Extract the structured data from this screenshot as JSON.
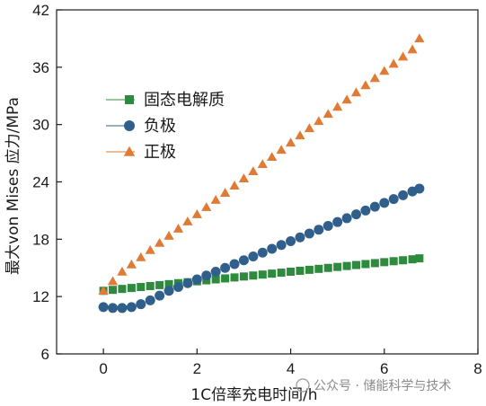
{
  "chart_data": {
    "type": "scatter",
    "xlabel": "1C倍率充电时间/h",
    "ylabel": "最大von Mises 应力/MPa",
    "xlim": [
      -1,
      8
    ],
    "ylim": [
      6,
      42
    ],
    "xticks": [
      0,
      2,
      4,
      6,
      8
    ],
    "yticks": [
      6,
      12,
      18,
      24,
      30,
      36,
      42
    ],
    "grid": false,
    "legend_position": "upper-left",
    "series": [
      {
        "name": "固态电解质",
        "marker": "square",
        "color": "#2e8b3e",
        "x": [
          0,
          0.2,
          0.4,
          0.6,
          0.8,
          1.0,
          1.2,
          1.4,
          1.6,
          1.8,
          2.0,
          2.2,
          2.4,
          2.6,
          2.8,
          3.0,
          3.2,
          3.4,
          3.6,
          3.8,
          4.0,
          4.2,
          4.4,
          4.6,
          4.8,
          5.0,
          5.2,
          5.4,
          5.6,
          5.8,
          6.0,
          6.2,
          6.4,
          6.6,
          6.75
        ],
        "y": [
          12.6,
          12.7,
          12.8,
          12.9,
          13.0,
          13.1,
          13.2,
          13.3,
          13.4,
          13.5,
          13.6,
          13.7,
          13.8,
          13.9,
          14.0,
          14.1,
          14.2,
          14.3,
          14.4,
          14.5,
          14.6,
          14.7,
          14.8,
          14.9,
          15.0,
          15.1,
          15.2,
          15.3,
          15.4,
          15.5,
          15.6,
          15.7,
          15.8,
          15.9,
          16.0
        ]
      },
      {
        "name": "负极",
        "marker": "circle",
        "color": "#2f5f8a",
        "x": [
          0,
          0.2,
          0.4,
          0.6,
          0.8,
          1.0,
          1.2,
          1.4,
          1.6,
          1.8,
          2.0,
          2.2,
          2.4,
          2.6,
          2.8,
          3.0,
          3.2,
          3.4,
          3.6,
          3.8,
          4.0,
          4.2,
          4.4,
          4.6,
          4.8,
          5.0,
          5.2,
          5.4,
          5.6,
          5.8,
          6.0,
          6.2,
          6.4,
          6.6,
          6.75
        ],
        "y": [
          10.9,
          10.8,
          10.8,
          10.9,
          11.2,
          11.6,
          12.1,
          12.6,
          13.0,
          13.4,
          13.8,
          14.2,
          14.6,
          15.0,
          15.4,
          15.8,
          16.2,
          16.6,
          17.0,
          17.4,
          17.8,
          18.2,
          18.6,
          19.0,
          19.4,
          19.8,
          20.2,
          20.6,
          21.0,
          21.4,
          21.8,
          22.2,
          22.6,
          23.0,
          23.3
        ]
      },
      {
        "name": "正极",
        "marker": "triangle",
        "color": "#e07b36",
        "x": [
          0,
          0.2,
          0.4,
          0.6,
          0.8,
          1.0,
          1.2,
          1.4,
          1.6,
          1.8,
          2.0,
          2.2,
          2.4,
          2.6,
          2.8,
          3.0,
          3.2,
          3.4,
          3.6,
          3.8,
          4.0,
          4.2,
          4.4,
          4.6,
          4.8,
          5.0,
          5.2,
          5.4,
          5.6,
          5.8,
          6.0,
          6.2,
          6.4,
          6.6,
          6.75
        ],
        "y": [
          12.6,
          13.6,
          14.6,
          15.35,
          16.1,
          16.85,
          17.6,
          18.35,
          19.1,
          19.85,
          20.6,
          21.35,
          22.1,
          22.85,
          23.6,
          24.35,
          25.1,
          25.85,
          26.6,
          27.35,
          28.1,
          28.85,
          29.6,
          30.35,
          31.1,
          31.85,
          32.6,
          33.35,
          34.1,
          34.85,
          35.6,
          36.35,
          37.1,
          37.85,
          39.0
        ]
      }
    ]
  },
  "watermark": "公众号 · 储能科学与技术"
}
